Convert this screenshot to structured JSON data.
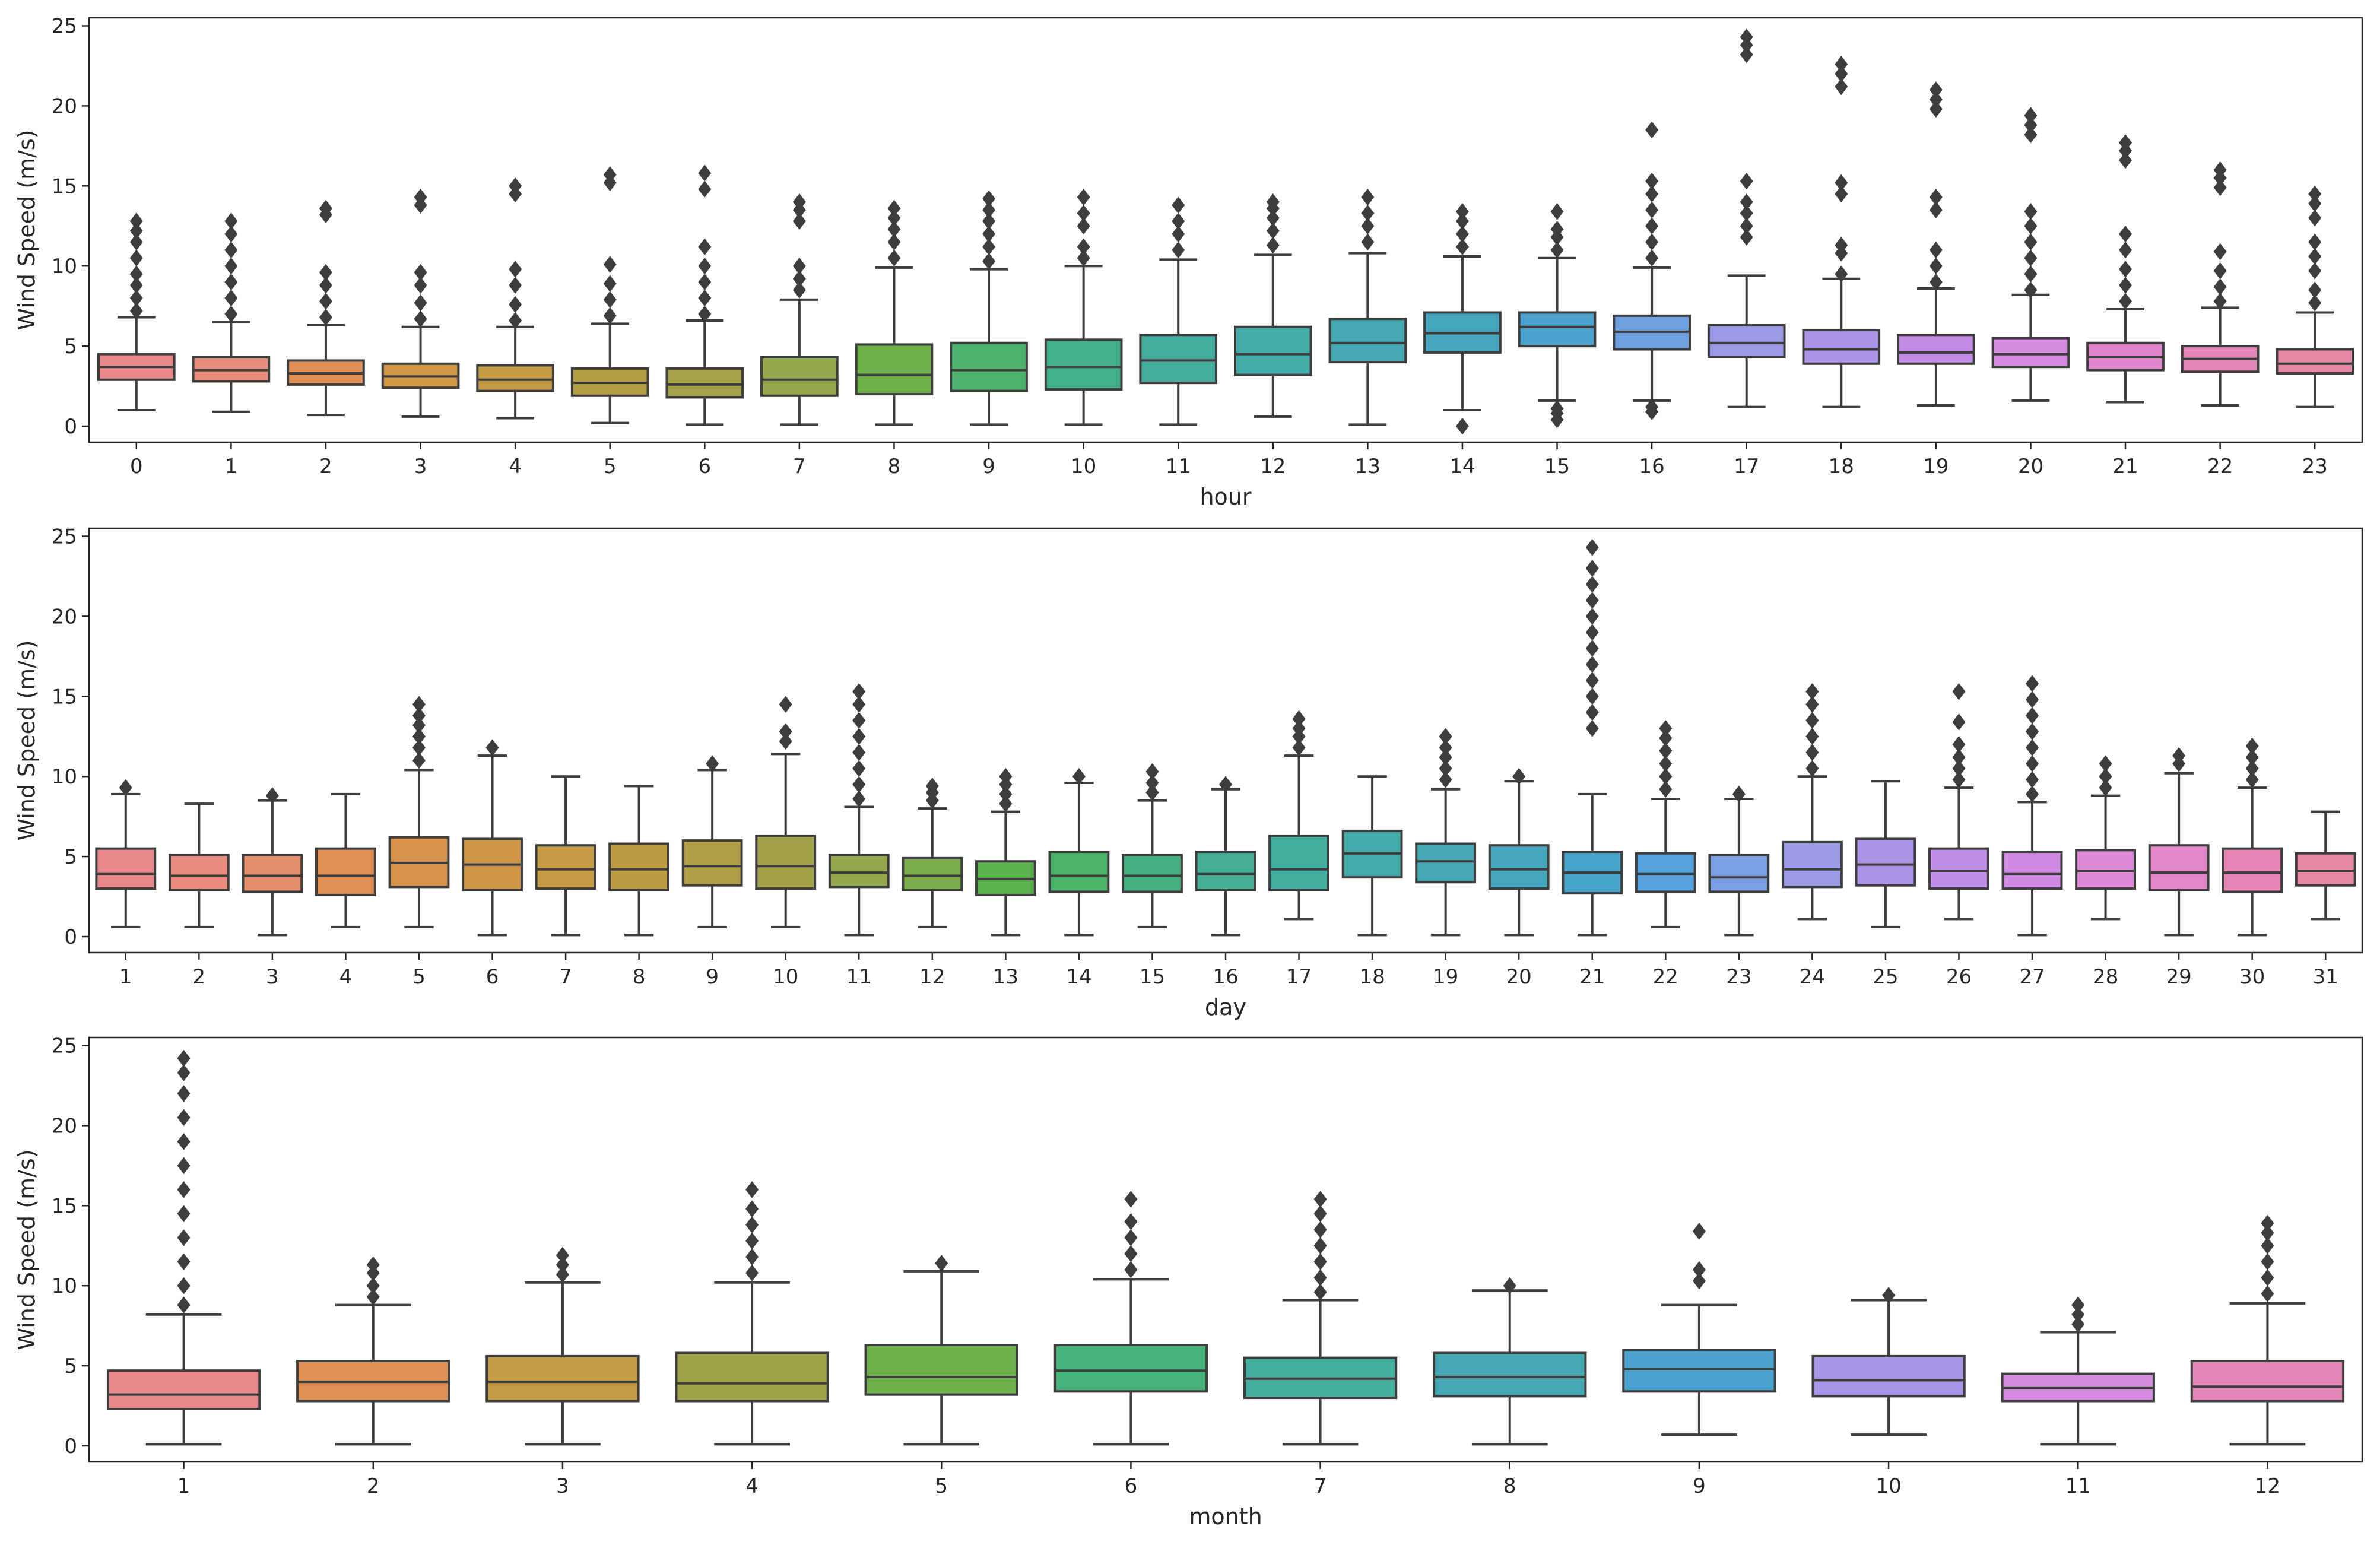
{
  "chart_data": [
    {
      "type": "boxplot",
      "xlabel": "hour",
      "ylabel": "Wind Speed (m/s)",
      "ylim": [
        -1,
        25.5
      ],
      "yticks": [
        0,
        5,
        10,
        15,
        20,
        25
      ],
      "categories": [
        "0",
        "1",
        "2",
        "3",
        "4",
        "5",
        "6",
        "7",
        "8",
        "9",
        "10",
        "11",
        "12",
        "13",
        "14",
        "15",
        "16",
        "17",
        "18",
        "19",
        "20",
        "21",
        "22",
        "23"
      ],
      "colors": [
        "#e8888a",
        "#e78b7a",
        "#dd8f55",
        "#d19645",
        "#c49a43",
        "#b49e44",
        "#a5a24b",
        "#93a74b",
        "#6fb04b",
        "#4cb26b",
        "#43b08d",
        "#43ad9e",
        "#42aba8",
        "#44a9b2",
        "#45a6bd",
        "#4aa3cf",
        "#6ea0e2",
        "#9a9ae7",
        "#ab93e6",
        "#c28be5",
        "#d78ae1",
        "#e186cc",
        "#e586b8",
        "#e888a3"
      ],
      "boxes": [
        {
          "whislo": 1.0,
          "q1": 2.9,
          "med": 3.7,
          "q3": 4.5,
          "whishi": 6.8,
          "fliers": [
            7.2,
            8.0,
            8.8,
            9.5,
            10.5,
            11.5,
            12.2,
            12.8
          ]
        },
        {
          "whislo": 0.9,
          "q1": 2.8,
          "med": 3.5,
          "q3": 4.3,
          "whishi": 6.5,
          "fliers": [
            7.0,
            8.0,
            9.0,
            10.0,
            11.0,
            12.0,
            12.8
          ]
        },
        {
          "whislo": 0.7,
          "q1": 2.6,
          "med": 3.3,
          "q3": 4.1,
          "whishi": 6.3,
          "fliers": [
            6.8,
            7.8,
            8.8,
            9.6,
            13.2,
            13.6
          ]
        },
        {
          "whislo": 0.6,
          "q1": 2.4,
          "med": 3.1,
          "q3": 3.9,
          "whishi": 6.2,
          "fliers": [
            6.7,
            7.7,
            8.8,
            9.6,
            13.8,
            14.3
          ]
        },
        {
          "whislo": 0.5,
          "q1": 2.2,
          "med": 2.9,
          "q3": 3.8,
          "whishi": 6.2,
          "fliers": [
            6.6,
            7.6,
            8.8,
            9.8,
            14.5,
            15.0
          ]
        },
        {
          "whislo": 0.2,
          "q1": 1.9,
          "med": 2.7,
          "q3": 3.6,
          "whishi": 6.4,
          "fliers": [
            6.9,
            7.9,
            8.9,
            10.1,
            15.2,
            15.7
          ]
        },
        {
          "whislo": 0.1,
          "q1": 1.8,
          "med": 2.6,
          "q3": 3.6,
          "whishi": 6.6,
          "fliers": [
            7.0,
            8.0,
            9.0,
            10.0,
            11.2,
            14.8,
            15.8
          ]
        },
        {
          "whislo": 0.1,
          "q1": 1.9,
          "med": 2.9,
          "q3": 4.3,
          "whishi": 7.9,
          "fliers": [
            8.5,
            9.2,
            10.0,
            12.8,
            13.5,
            14.0
          ]
        },
        {
          "whislo": 0.1,
          "q1": 2.0,
          "med": 3.2,
          "q3": 5.1,
          "whishi": 9.9,
          "fliers": [
            10.5,
            11.5,
            12.3,
            13.0,
            13.6
          ]
        },
        {
          "whislo": 0.1,
          "q1": 2.2,
          "med": 3.5,
          "q3": 5.2,
          "whishi": 9.8,
          "fliers": [
            10.3,
            11.2,
            12.0,
            12.8,
            13.5,
            14.2
          ]
        },
        {
          "whislo": 0.1,
          "q1": 2.3,
          "med": 3.7,
          "q3": 5.4,
          "whishi": 10.0,
          "fliers": [
            10.5,
            11.2,
            12.5,
            13.3,
            14.3
          ]
        },
        {
          "whislo": 0.1,
          "q1": 2.7,
          "med": 4.1,
          "q3": 5.7,
          "whishi": 10.4,
          "fliers": [
            11.0,
            12.0,
            12.8,
            13.8
          ]
        },
        {
          "whislo": 0.6,
          "q1": 3.2,
          "med": 4.5,
          "q3": 6.2,
          "whishi": 10.7,
          "fliers": [
            11.3,
            12.2,
            13.0,
            13.6,
            14.0
          ]
        },
        {
          "whislo": 0.1,
          "q1": 4.0,
          "med": 5.2,
          "q3": 6.7,
          "whishi": 10.8,
          "fliers": [
            11.5,
            12.5,
            13.3,
            14.3
          ]
        },
        {
          "whislo": 1.0,
          "q1": 4.6,
          "med": 5.8,
          "q3": 7.1,
          "whishi": 10.6,
          "fliers": [
            0.0,
            11.2,
            12.0,
            12.8,
            13.4
          ]
        },
        {
          "whislo": 1.6,
          "q1": 5.0,
          "med": 6.2,
          "q3": 7.1,
          "whishi": 10.5,
          "fliers": [
            0.4,
            0.8,
            1.1,
            11.0,
            11.8,
            12.3,
            13.4
          ]
        },
        {
          "whislo": 1.6,
          "q1": 4.8,
          "med": 5.9,
          "q3": 6.9,
          "whishi": 9.9,
          "fliers": [
            0.9,
            1.2,
            10.5,
            11.5,
            12.5,
            13.5,
            14.5,
            15.3,
            18.5
          ]
        },
        {
          "whislo": 1.2,
          "q1": 4.3,
          "med": 5.2,
          "q3": 6.3,
          "whishi": 9.4,
          "fliers": [
            11.8,
            12.5,
            13.3,
            14.0,
            15.3,
            23.2,
            23.8,
            24.3
          ]
        },
        {
          "whislo": 1.2,
          "q1": 3.9,
          "med": 4.8,
          "q3": 6.0,
          "whishi": 9.2,
          "fliers": [
            9.5,
            10.8,
            11.3,
            14.5,
            15.2,
            21.2,
            22.0,
            22.6
          ]
        },
        {
          "whislo": 1.3,
          "q1": 3.9,
          "med": 4.6,
          "q3": 5.7,
          "whishi": 8.6,
          "fliers": [
            9.0,
            10.0,
            11.0,
            13.5,
            14.3,
            19.8,
            20.4,
            21.0
          ]
        },
        {
          "whislo": 1.6,
          "q1": 3.7,
          "med": 4.5,
          "q3": 5.5,
          "whishi": 8.2,
          "fliers": [
            8.5,
            9.5,
            10.5,
            11.5,
            12.5,
            13.4,
            18.2,
            18.8,
            19.4
          ]
        },
        {
          "whislo": 1.5,
          "q1": 3.5,
          "med": 4.3,
          "q3": 5.2,
          "whishi": 7.3,
          "fliers": [
            7.8,
            8.8,
            9.8,
            11.0,
            12.0,
            16.6,
            17.2,
            17.7
          ]
        },
        {
          "whislo": 1.3,
          "q1": 3.4,
          "med": 4.2,
          "q3": 5.0,
          "whishi": 7.4,
          "fliers": [
            7.8,
            8.7,
            9.7,
            10.9,
            14.9,
            15.5,
            16.0
          ]
        },
        {
          "whislo": 1.2,
          "q1": 3.3,
          "med": 3.9,
          "q3": 4.8,
          "whishi": 7.1,
          "fliers": [
            7.7,
            8.5,
            9.7,
            10.6,
            11.5,
            13.0,
            13.9,
            14.5
          ]
        }
      ]
    },
    {
      "type": "boxplot",
      "xlabel": "day",
      "ylabel": "Wind Speed (m/s)",
      "ylim": [
        -1,
        25.5
      ],
      "yticks": [
        0,
        5,
        10,
        15,
        20,
        25
      ],
      "categories": [
        "1",
        "2",
        "3",
        "4",
        "5",
        "6",
        "7",
        "8",
        "9",
        "10",
        "11",
        "12",
        "13",
        "14",
        "15",
        "16",
        "17",
        "18",
        "19",
        "20",
        "21",
        "22",
        "23",
        "24",
        "25",
        "26",
        "27",
        "28",
        "29",
        "30",
        "31"
      ],
      "colors": [
        "#e8888a",
        "#e78b7d",
        "#e48e6b",
        "#dd8f56",
        "#d6924b",
        "#cf9546",
        "#c69943",
        "#bc9c43",
        "#b09e44",
        "#a3a24b",
        "#93a74b",
        "#7cad4b",
        "#5ab04f",
        "#4bb26a",
        "#45b07f",
        "#43ae92",
        "#42ac9f",
        "#42aaa8",
        "#43a8b3",
        "#45a6bd",
        "#47a4c8",
        "#56a2dc",
        "#7a9fe2",
        "#9a9ae7",
        "#ad93e6",
        "#bf8de5",
        "#d18ae3",
        "#dd89d7",
        "#e287c7",
        "#e586b6",
        "#e888a3"
      ],
      "boxes": [
        {
          "whislo": 0.6,
          "q1": 3.0,
          "med": 3.9,
          "q3": 5.5,
          "whishi": 8.9,
          "fliers": [
            9.3
          ]
        },
        {
          "whislo": 0.6,
          "q1": 2.9,
          "med": 3.8,
          "q3": 5.1,
          "whishi": 8.3,
          "fliers": []
        },
        {
          "whislo": 0.1,
          "q1": 2.8,
          "med": 3.8,
          "q3": 5.1,
          "whishi": 8.5,
          "fliers": [
            8.8
          ]
        },
        {
          "whislo": 0.6,
          "q1": 2.6,
          "med": 3.8,
          "q3": 5.5,
          "whishi": 8.9,
          "fliers": []
        },
        {
          "whislo": 0.6,
          "q1": 3.1,
          "med": 4.6,
          "q3": 6.2,
          "whishi": 10.4,
          "fliers": [
            11.0,
            11.8,
            12.5,
            13.2,
            13.8,
            14.5
          ]
        },
        {
          "whislo": 0.1,
          "q1": 2.9,
          "med": 4.5,
          "q3": 6.1,
          "whishi": 11.3,
          "fliers": [
            11.8
          ]
        },
        {
          "whislo": 0.1,
          "q1": 3.0,
          "med": 4.2,
          "q3": 5.7,
          "whishi": 10.0,
          "fliers": []
        },
        {
          "whislo": 0.1,
          "q1": 2.9,
          "med": 4.2,
          "q3": 5.8,
          "whishi": 9.4,
          "fliers": []
        },
        {
          "whislo": 0.6,
          "q1": 3.2,
          "med": 4.4,
          "q3": 6.0,
          "whishi": 10.4,
          "fliers": [
            10.8
          ]
        },
        {
          "whislo": 0.6,
          "q1": 3.0,
          "med": 4.4,
          "q3": 6.3,
          "whishi": 11.4,
          "fliers": [
            12.2,
            12.8,
            14.5
          ]
        },
        {
          "whislo": 0.1,
          "q1": 3.1,
          "med": 4.0,
          "q3": 5.1,
          "whishi": 8.1,
          "fliers": [
            8.6,
            9.5,
            10.5,
            11.5,
            12.5,
            13.5,
            14.5,
            15.3
          ]
        },
        {
          "whislo": 0.6,
          "q1": 2.9,
          "med": 3.8,
          "q3": 4.9,
          "whishi": 8.0,
          "fliers": [
            8.5,
            9.0,
            9.4
          ]
        },
        {
          "whislo": 0.1,
          "q1": 2.6,
          "med": 3.6,
          "q3": 4.7,
          "whishi": 7.8,
          "fliers": [
            8.3,
            8.9,
            9.5,
            10.0
          ]
        },
        {
          "whislo": 0.1,
          "q1": 2.8,
          "med": 3.8,
          "q3": 5.3,
          "whishi": 9.6,
          "fliers": [
            10.0
          ]
        },
        {
          "whislo": 0.6,
          "q1": 2.8,
          "med": 3.8,
          "q3": 5.1,
          "whishi": 8.5,
          "fliers": [
            9.0,
            9.6,
            10.3
          ]
        },
        {
          "whislo": 0.1,
          "q1": 2.9,
          "med": 3.9,
          "q3": 5.3,
          "whishi": 9.2,
          "fliers": [
            9.5
          ]
        },
        {
          "whislo": 1.1,
          "q1": 2.9,
          "med": 4.2,
          "q3": 6.3,
          "whishi": 11.3,
          "fliers": [
            11.8,
            12.5,
            13.0,
            13.6
          ]
        },
        {
          "whislo": 0.1,
          "q1": 3.7,
          "med": 5.2,
          "q3": 6.6,
          "whishi": 10.0,
          "fliers": []
        },
        {
          "whislo": 0.1,
          "q1": 3.4,
          "med": 4.7,
          "q3": 5.8,
          "whishi": 9.2,
          "fliers": [
            9.8,
            10.5,
            11.2,
            11.8,
            12.5
          ]
        },
        {
          "whislo": 0.1,
          "q1": 3.0,
          "med": 4.2,
          "q3": 5.7,
          "whishi": 9.7,
          "fliers": [
            10.0
          ]
        },
        {
          "whislo": 0.1,
          "q1": 2.7,
          "med": 4.0,
          "q3": 5.3,
          "whishi": 8.9,
          "fliers": [
            13.0,
            14.0,
            15.0,
            16.0,
            17.0,
            18.0,
            19.0,
            20.0,
            21.0,
            22.0,
            23.0,
            24.3
          ]
        },
        {
          "whislo": 0.6,
          "q1": 2.8,
          "med": 3.9,
          "q3": 5.2,
          "whishi": 8.6,
          "fliers": [
            9.2,
            10.0,
            10.8,
            11.6,
            12.4,
            13.0
          ]
        },
        {
          "whislo": 0.1,
          "q1": 2.8,
          "med": 3.7,
          "q3": 5.1,
          "whishi": 8.6,
          "fliers": [
            8.9
          ]
        },
        {
          "whislo": 1.1,
          "q1": 3.1,
          "med": 4.2,
          "q3": 5.9,
          "whishi": 10.0,
          "fliers": [
            10.5,
            11.5,
            12.5,
            13.5,
            14.5,
            15.3
          ]
        },
        {
          "whislo": 0.6,
          "q1": 3.2,
          "med": 4.5,
          "q3": 6.1,
          "whishi": 9.7,
          "fliers": []
        },
        {
          "whislo": 1.1,
          "q1": 3.0,
          "med": 4.1,
          "q3": 5.5,
          "whishi": 9.3,
          "fliers": [
            9.8,
            10.5,
            11.2,
            12.0,
            13.4,
            15.3
          ]
        },
        {
          "whislo": 0.1,
          "q1": 3.0,
          "med": 3.9,
          "q3": 5.3,
          "whishi": 8.4,
          "fliers": [
            8.9,
            9.8,
            10.8,
            11.8,
            12.8,
            13.8,
            14.8,
            15.8
          ]
        },
        {
          "whislo": 1.1,
          "q1": 3.0,
          "med": 4.1,
          "q3": 5.4,
          "whishi": 8.8,
          "fliers": [
            9.3,
            10.0,
            10.8
          ]
        },
        {
          "whislo": 0.1,
          "q1": 2.9,
          "med": 4.0,
          "q3": 5.7,
          "whishi": 10.2,
          "fliers": [
            10.8,
            11.3
          ]
        },
        {
          "whislo": 0.1,
          "q1": 2.8,
          "med": 4.0,
          "q3": 5.5,
          "whishi": 9.3,
          "fliers": [
            9.8,
            10.5,
            11.2,
            11.9
          ]
        },
        {
          "whislo": 1.1,
          "q1": 3.2,
          "med": 4.1,
          "q3": 5.2,
          "whishi": 7.8,
          "fliers": []
        }
      ]
    },
    {
      "type": "boxplot",
      "xlabel": "month",
      "ylabel": "Wind Speed (m/s)",
      "ylim": [
        -1,
        25.5
      ],
      "yticks": [
        0,
        5,
        10,
        15,
        20,
        25
      ],
      "categories": [
        "1",
        "2",
        "3",
        "4",
        "5",
        "6",
        "7",
        "8",
        "9",
        "10",
        "11",
        "12"
      ],
      "colors": [
        "#e8888a",
        "#dd8f55",
        "#c49a43",
        "#a1a34b",
        "#6eb04b",
        "#47b17a",
        "#43ad9e",
        "#44a9b2",
        "#4aa3cf",
        "#a995e5",
        "#d38ae0",
        "#e586b8"
      ],
      "boxes": [
        {
          "whislo": 0.1,
          "q1": 2.3,
          "med": 3.2,
          "q3": 4.7,
          "whishi": 8.2,
          "fliers": [
            8.8,
            10.0,
            11.5,
            13.0,
            14.5,
            16.0,
            17.5,
            19.0,
            20.5,
            22.0,
            23.3,
            24.2
          ]
        },
        {
          "whislo": 0.1,
          "q1": 2.8,
          "med": 4.0,
          "q3": 5.3,
          "whishi": 8.8,
          "fliers": [
            9.3,
            10.0,
            10.8,
            11.3
          ]
        },
        {
          "whislo": 0.1,
          "q1": 2.8,
          "med": 4.0,
          "q3": 5.6,
          "whishi": 10.2,
          "fliers": [
            10.7,
            11.3,
            11.9
          ]
        },
        {
          "whislo": 0.1,
          "q1": 2.8,
          "med": 3.9,
          "q3": 5.8,
          "whishi": 10.2,
          "fliers": [
            10.8,
            11.8,
            12.8,
            13.8,
            14.8,
            16.0
          ]
        },
        {
          "whislo": 0.1,
          "q1": 3.2,
          "med": 4.3,
          "q3": 6.3,
          "whishi": 10.9,
          "fliers": [
            11.4
          ]
        },
        {
          "whislo": 0.1,
          "q1": 3.4,
          "med": 4.7,
          "q3": 6.3,
          "whishi": 10.4,
          "fliers": [
            11.0,
            12.0,
            13.0,
            14.0,
            15.4
          ]
        },
        {
          "whislo": 0.1,
          "q1": 3.0,
          "med": 4.2,
          "q3": 5.5,
          "whishi": 9.1,
          "fliers": [
            9.6,
            10.5,
            11.5,
            12.5,
            13.5,
            14.5,
            15.4
          ]
        },
        {
          "whislo": 0.1,
          "q1": 3.1,
          "med": 4.3,
          "q3": 5.8,
          "whishi": 9.7,
          "fliers": [
            10.0
          ]
        },
        {
          "whislo": 0.7,
          "q1": 3.4,
          "med": 4.8,
          "q3": 6.0,
          "whishi": 8.8,
          "fliers": [
            10.3,
            11.0,
            13.4
          ]
        },
        {
          "whislo": 0.7,
          "q1": 3.1,
          "med": 4.1,
          "q3": 5.6,
          "whishi": 9.1,
          "fliers": [
            9.4
          ]
        },
        {
          "whislo": 0.1,
          "q1": 2.8,
          "med": 3.6,
          "q3": 4.5,
          "whishi": 7.1,
          "fliers": [
            7.6,
            8.2,
            8.8
          ]
        },
        {
          "whislo": 0.1,
          "q1": 2.8,
          "med": 3.7,
          "q3": 5.3,
          "whishi": 8.9,
          "fliers": [
            9.5,
            10.5,
            11.5,
            12.5,
            13.3,
            13.9
          ]
        }
      ]
    }
  ]
}
